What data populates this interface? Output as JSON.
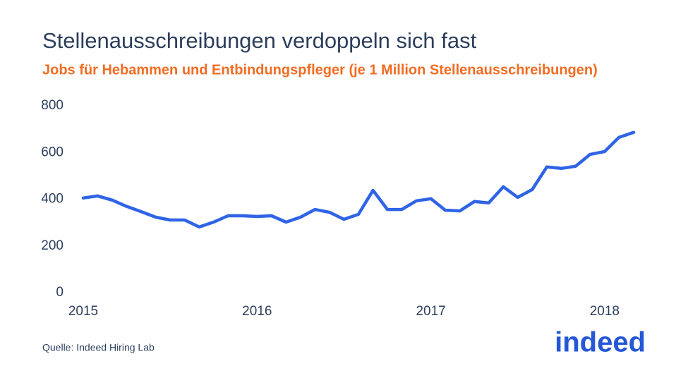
{
  "chart_data": {
    "type": "line",
    "title": "Stellenausschreibungen verdoppeln sich fast",
    "subtitle": "Jobs für Hebammen und Entbindungspfleger (je 1 Million Stellenausschreibungen)",
    "source": "Quelle: Indeed Hiring Lab",
    "logo": "indeed",
    "x": [
      2015,
      2015.083,
      2015.167,
      2015.25,
      2015.333,
      2015.417,
      2015.5,
      2015.583,
      2015.667,
      2015.75,
      2015.833,
      2015.917,
      2016,
      2016.083,
      2016.167,
      2016.25,
      2016.333,
      2016.417,
      2016.5,
      2016.583,
      2016.667,
      2016.75,
      2016.833,
      2016.917,
      2017,
      2017.083,
      2017.167,
      2017.25,
      2017.333,
      2017.417,
      2017.5,
      2017.583,
      2017.667,
      2017.75,
      2017.833,
      2017.917,
      2018,
      2018.083,
      2018.167
    ],
    "series": [
      {
        "color": "#2f64e6",
        "values": [
          405,
          414,
          396,
          369,
          347,
          323,
          311,
          311,
          281,
          302,
          329,
          329,
          326,
          329,
          302,
          323,
          356,
          344,
          314,
          335,
          438,
          356,
          356,
          393,
          402,
          353,
          350,
          390,
          384,
          453,
          408,
          441,
          538,
          532,
          541,
          592,
          604,
          665,
          686
        ]
      }
    ],
    "xlim": [
      2015,
      2018.167
    ],
    "xticks": [
      2015,
      2016,
      2017,
      2018
    ],
    "ylim": [
      0,
      800
    ],
    "yticks": [
      0,
      200,
      400,
      600,
      800
    ]
  }
}
